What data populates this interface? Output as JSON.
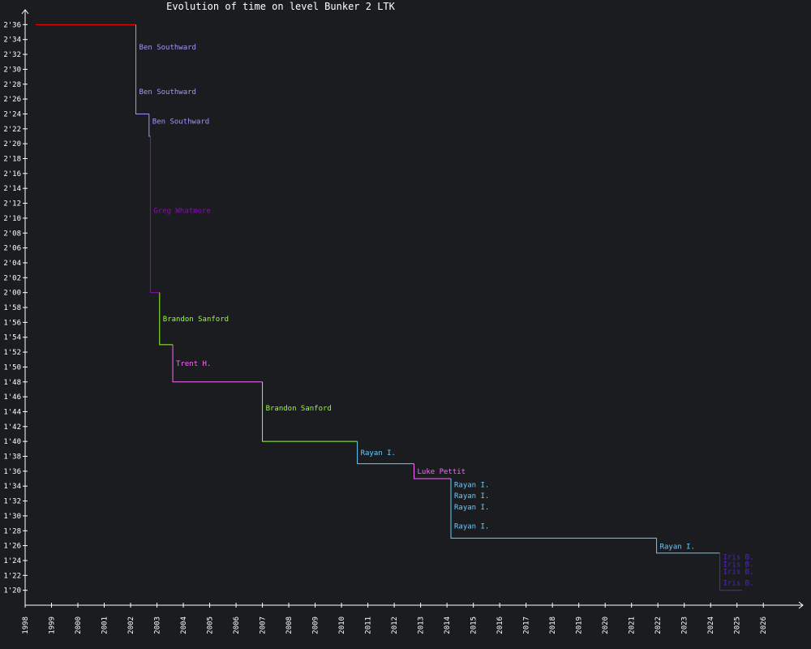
{
  "chart_data": {
    "type": "line",
    "title": "Evolution of time on level Bunker 2 LTK",
    "xlabel": "",
    "ylabel": "",
    "xlim": [
      1998,
      2027.5
    ],
    "ylim": [
      78,
      158
    ],
    "y_tick_step": 2,
    "y_ticks": [
      "1'20",
      "1'22",
      "1'24",
      "1'26",
      "1'28",
      "1'30",
      "1'32",
      "1'34",
      "1'36",
      "1'38",
      "1'40",
      "1'42",
      "1'44",
      "1'46",
      "1'48",
      "1'50",
      "1'52",
      "1'54",
      "1'56",
      "1'58",
      "2'00",
      "2'02",
      "2'04",
      "2'06",
      "2'08",
      "2'10",
      "2'12",
      "2'14",
      "2'16",
      "2'18",
      "2'20",
      "2'22",
      "2'24",
      "2'26",
      "2'28",
      "2'30",
      "2'32",
      "2'34",
      "2'36"
    ],
    "x_ticks": [
      "1998",
      "1999",
      "2000",
      "2001",
      "2002",
      "2003",
      "2004",
      "2005",
      "2006",
      "2007",
      "2008",
      "2009",
      "2010",
      "2011",
      "2012",
      "2013",
      "2014",
      "2015",
      "2016",
      "2017",
      "2018",
      "2019",
      "2020",
      "2021",
      "2022",
      "2023",
      "2024",
      "2025",
      "2026"
    ],
    "grid": false,
    "baseline": {
      "x": [
        1998.4,
        2002.2
      ],
      "y": 156,
      "color": "#ff0000"
    },
    "records": [
      {
        "player": "Ben Southward",
        "x_start": 2002.2,
        "y_from": 156,
        "y_to": 149,
        "x_end": 2002.2,
        "color": "#9b9bff",
        "label_y": 153
      },
      {
        "player": "Ben Southward",
        "x_start": 2002.2,
        "y_from": 149,
        "y_to": 144,
        "x_end": 2002.7,
        "color": "#9b9bff",
        "label_y": 147
      },
      {
        "player": "Ben Southward",
        "x_start": 2002.7,
        "y_from": 144,
        "y_to": 141,
        "x_end": 2002.75,
        "color": "#9b9bff",
        "label_y": 143
      },
      {
        "player": "Greg Whatmore",
        "x_start": 2002.75,
        "y_from": 141,
        "y_to": 120,
        "x_end": 2003.1,
        "color": "#9900cc",
        "label_y": 131
      },
      {
        "player": "Brandon Sanford",
        "x_start": 2003.1,
        "y_from": 120,
        "y_to": 113,
        "x_end": 2003.6,
        "color": "#99ff33",
        "label_y": 116.5
      },
      {
        "player": "Trent H.",
        "x_start": 2003.6,
        "y_from": 113,
        "y_to": 108,
        "x_end": 2007.0,
        "color": "#ff66ff",
        "label_y": 110.5
      },
      {
        "player": "Brandon Sanford",
        "x_start": 2007.0,
        "y_from": 108,
        "y_to": 100,
        "x_end": 2010.6,
        "color": "#99ff33",
        "label_y": 104.5
      },
      {
        "player": "Rayan I.",
        "x_start": 2010.6,
        "y_from": 100,
        "y_to": 97,
        "x_end": 2012.75,
        "color": "#66ccff",
        "label_y": 98.5
      },
      {
        "player": "Luke Pettit",
        "x_start": 2012.75,
        "y_from": 97,
        "y_to": 95,
        "x_end": 2014.15,
        "color": "#ff66ff",
        "label_y": 96
      },
      {
        "player": "Rayan I.",
        "x_start": 2014.15,
        "y_from": 95,
        "y_to": 93.5,
        "x_end": 2014.15,
        "color": "#66ccff",
        "label_y": 94.2
      },
      {
        "player": "Rayan I.",
        "x_start": 2014.15,
        "y_from": 93.5,
        "y_to": 92,
        "x_end": 2014.15,
        "color": "#66ccff",
        "label_y": 92.7
      },
      {
        "player": "Rayan I.",
        "x_start": 2014.15,
        "y_from": 92,
        "y_to": 89,
        "x_end": 2014.15,
        "color": "#66ccff",
        "label_y": 91.2
      },
      {
        "player": "Rayan I.",
        "x_start": 2014.15,
        "y_from": 89,
        "y_to": 87,
        "x_end": 2021.95,
        "color": "#66ccff",
        "label_y": 88.6
      },
      {
        "player": "Rayan I.",
        "x_start": 2021.95,
        "y_from": 87,
        "y_to": 85,
        "x_end": 2024.35,
        "color": "#66ccff",
        "label_y": 85.9
      },
      {
        "player": "Iris B.",
        "x_start": 2024.35,
        "y_from": 85,
        "y_to": 84,
        "x_end": 2024.35,
        "color": "#5522cc",
        "label_y": 84.5
      },
      {
        "player": "Iris B.",
        "x_start": 2024.35,
        "y_from": 84,
        "y_to": 83,
        "x_end": 2024.35,
        "color": "#5522cc",
        "label_y": 83.5
      },
      {
        "player": "Iris B.",
        "x_start": 2024.35,
        "y_from": 83,
        "y_to": 81,
        "x_end": 2024.35,
        "color": "#5522cc",
        "label_y": 82.5
      },
      {
        "player": "Iris B.",
        "x_start": 2024.35,
        "y_from": 81,
        "y_to": 80,
        "x_end": 2025.2,
        "color": "#5522cc",
        "label_y": 81
      }
    ]
  }
}
